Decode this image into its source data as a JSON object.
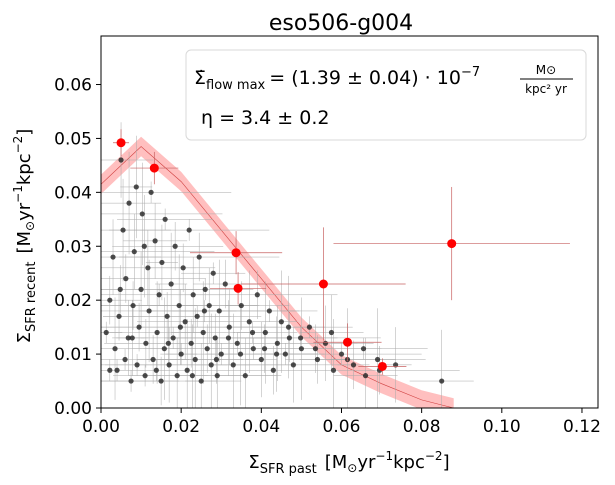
{
  "chart_data": {
    "type": "scatter",
    "title": "eso506-g004",
    "xlabel": {
      "main": "Σ",
      "sub": "SFR past",
      "units_pre": "[M",
      "units_sun": "⊙",
      "units_mid": "yr",
      "units_exp1": "−1",
      "units_mid2": "kpc",
      "units_exp2": "−2",
      "units_post": "]"
    },
    "ylabel": {
      "main": "Σ",
      "sub": "SFR recent",
      "units_pre": "[M",
      "units_sun": "⊙",
      "units_mid": "yr",
      "units_exp1": "−1",
      "units_mid2": "kpc",
      "units_exp2": "−2",
      "units_post": "]"
    },
    "xlim": [
      0,
      0.124
    ],
    "ylim": [
      0,
      0.069
    ],
    "x_ticks": [
      0.0,
      0.02,
      0.04,
      0.06,
      0.08,
      0.1,
      0.12
    ],
    "x_tick_labels": [
      "0.00",
      "0.02",
      "0.04",
      "0.06",
      "0.08",
      "0.10",
      "0.12"
    ],
    "y_ticks": [
      0.0,
      0.01,
      0.02,
      0.03,
      0.04,
      0.05,
      0.06
    ],
    "y_tick_labels": [
      "0.00",
      "0.01",
      "0.02",
      "0.03",
      "0.04",
      "0.05",
      "0.06"
    ],
    "grid": false,
    "annotation": {
      "line1_lhs": "Σ̇",
      "line1_sub": "flow max",
      "line1_rhs": "= (1.39 ± 0.04) · 10",
      "line1_exp": "−7",
      "line1_frac_num": "M⊙",
      "line1_frac_den": "kpc² yr",
      "line2": "η = 3.4 ± 0.2",
      "placement": "top-right"
    },
    "model_band": {
      "color": "#ff9c9c",
      "x": [
        0.0,
        0.01,
        0.02,
        0.03,
        0.04,
        0.05,
        0.06,
        0.07,
        0.08,
        0.088
      ],
      "center": [
        0.0415,
        0.0485,
        0.042,
        0.033,
        0.024,
        0.015,
        0.008,
        0.0045,
        0.0015,
        0.0
      ],
      "halfwidth": 0.0018
    },
    "series": [
      {
        "color": "#ff0000",
        "marker": "circle-large",
        "points": [
          {
            "x": 0.005,
            "y": 0.0492,
            "xerr": 0.002,
            "yerr": 0.0025
          },
          {
            "x": 0.0133,
            "y": 0.0445,
            "xerr": 0.006,
            "yerr": 0.003
          },
          {
            "x": 0.0337,
            "y": 0.0288,
            "xerr": 0.0115,
            "yerr": 0.004
          },
          {
            "x": 0.0342,
            "y": 0.0222,
            "xerr": 0.007,
            "yerr": 0.003
          },
          {
            "x": 0.0555,
            "y": 0.023,
            "xerr": 0.0205,
            "yerr": 0.0105
          },
          {
            "x": 0.0615,
            "y": 0.0122,
            "xerr": 0.0085,
            "yerr": 0.0035
          },
          {
            "x": 0.0702,
            "y": 0.0077,
            "xerr": 0.006,
            "yerr": 0.0015
          },
          {
            "x": 0.0875,
            "y": 0.0305,
            "xerr": 0.0295,
            "yerr": 0.0105
          }
        ]
      },
      {
        "color": "#222222",
        "marker": "circle-small",
        "points": [
          {
            "x": 0.0013,
            "y": 0.014
          },
          {
            "x": 0.0022,
            "y": 0.02
          },
          {
            "x": 0.003,
            "y": 0.028
          },
          {
            "x": 0.0035,
            "y": 0.011
          },
          {
            "x": 0.004,
            "y": 0.007
          },
          {
            "x": 0.0045,
            "y": 0.017
          },
          {
            "x": 0.005,
            "y": 0.046
          },
          {
            "x": 0.0055,
            "y": 0.033
          },
          {
            "x": 0.006,
            "y": 0.009
          },
          {
            "x": 0.0062,
            "y": 0.024
          },
          {
            "x": 0.0068,
            "y": 0.013
          },
          {
            "x": 0.007,
            "y": 0.038
          },
          {
            "x": 0.0075,
            "y": 0.005
          },
          {
            "x": 0.008,
            "y": 0.019
          },
          {
            "x": 0.0083,
            "y": 0.029
          },
          {
            "x": 0.0088,
            "y": 0.041
          },
          {
            "x": 0.009,
            "y": 0.008
          },
          {
            "x": 0.0095,
            "y": 0.015
          },
          {
            "x": 0.01,
            "y": 0.022
          },
          {
            "x": 0.0103,
            "y": 0.036
          },
          {
            "x": 0.011,
            "y": 0.006
          },
          {
            "x": 0.0112,
            "y": 0.012
          },
          {
            "x": 0.0117,
            "y": 0.026
          },
          {
            "x": 0.012,
            "y": 0.018
          },
          {
            "x": 0.0125,
            "y": 0.04
          },
          {
            "x": 0.013,
            "y": 0.009
          },
          {
            "x": 0.0135,
            "y": 0.031
          },
          {
            "x": 0.014,
            "y": 0.014
          },
          {
            "x": 0.0145,
            "y": 0.021
          },
          {
            "x": 0.015,
            "y": 0.005
          },
          {
            "x": 0.0152,
            "y": 0.027
          },
          {
            "x": 0.0158,
            "y": 0.011
          },
          {
            "x": 0.016,
            "y": 0.035
          },
          {
            "x": 0.0165,
            "y": 0.017
          },
          {
            "x": 0.017,
            "y": 0.008
          },
          {
            "x": 0.0175,
            "y": 0.023
          },
          {
            "x": 0.018,
            "y": 0.013
          },
          {
            "x": 0.0185,
            "y": 0.03
          },
          {
            "x": 0.019,
            "y": 0.006
          },
          {
            "x": 0.0195,
            "y": 0.019
          },
          {
            "x": 0.02,
            "y": 0.01
          },
          {
            "x": 0.0205,
            "y": 0.026
          },
          {
            "x": 0.021,
            "y": 0.016
          },
          {
            "x": 0.0215,
            "y": 0.007
          },
          {
            "x": 0.022,
            "y": 0.033
          },
          {
            "x": 0.0225,
            "y": 0.012
          },
          {
            "x": 0.023,
            "y": 0.021
          },
          {
            "x": 0.0235,
            "y": 0.009
          },
          {
            "x": 0.024,
            "y": 0.017
          },
          {
            "x": 0.0245,
            "y": 0.028
          },
          {
            "x": 0.025,
            "y": 0.005
          },
          {
            "x": 0.0255,
            "y": 0.014
          },
          {
            "x": 0.026,
            "y": 0.022
          },
          {
            "x": 0.0265,
            "y": 0.011
          },
          {
            "x": 0.027,
            "y": 0.019
          },
          {
            "x": 0.0275,
            "y": 0.008
          },
          {
            "x": 0.028,
            "y": 0.025
          },
          {
            "x": 0.0285,
            "y": 0.013
          },
          {
            "x": 0.029,
            "y": 0.006
          },
          {
            "x": 0.0295,
            "y": 0.018
          },
          {
            "x": 0.03,
            "y": 0.01
          },
          {
            "x": 0.031,
            "y": 0.023
          },
          {
            "x": 0.032,
            "y": 0.015
          },
          {
            "x": 0.033,
            "y": 0.008
          },
          {
            "x": 0.034,
            "y": 0.012
          },
          {
            "x": 0.035,
            "y": 0.019
          },
          {
            "x": 0.036,
            "y": 0.006
          },
          {
            "x": 0.037,
            "y": 0.016
          },
          {
            "x": 0.038,
            "y": 0.011
          },
          {
            "x": 0.039,
            "y": 0.021
          },
          {
            "x": 0.04,
            "y": 0.009
          },
          {
            "x": 0.041,
            "y": 0.014
          },
          {
            "x": 0.042,
            "y": 0.018
          },
          {
            "x": 0.043,
            "y": 0.007
          },
          {
            "x": 0.044,
            "y": 0.012
          },
          {
            "x": 0.045,
            "y": 0.016
          },
          {
            "x": 0.046,
            "y": 0.01
          },
          {
            "x": 0.047,
            "y": 0.013
          },
          {
            "x": 0.048,
            "y": 0.008
          },
          {
            "x": 0.05,
            "y": 0.011
          },
          {
            "x": 0.052,
            "y": 0.015
          },
          {
            "x": 0.054,
            "y": 0.009
          },
          {
            "x": 0.056,
            "y": 0.012
          },
          {
            "x": 0.058,
            "y": 0.007
          },
          {
            "x": 0.06,
            "y": 0.01
          },
          {
            "x": 0.063,
            "y": 0.008
          },
          {
            "x": 0.066,
            "y": 0.006
          },
          {
            "x": 0.069,
            "y": 0.009
          },
          {
            "x": 0.0022,
            "y": 0.007
          },
          {
            "x": 0.0048,
            "y": 0.022
          },
          {
            "x": 0.0078,
            "y": 0.013
          },
          {
            "x": 0.0108,
            "y": 0.03
          },
          {
            "x": 0.0138,
            "y": 0.007
          },
          {
            "x": 0.0168,
            "y": 0.012
          },
          {
            "x": 0.0198,
            "y": 0.015
          },
          {
            "x": 0.0228,
            "y": 0.006
          },
          {
            "x": 0.0258,
            "y": 0.018
          },
          {
            "x": 0.0288,
            "y": 0.009
          },
          {
            "x": 0.0318,
            "y": 0.013
          },
          {
            "x": 0.0348,
            "y": 0.01
          },
          {
            "x": 0.0378,
            "y": 0.014
          },
          {
            "x": 0.0408,
            "y": 0.011
          },
          {
            "x": 0.0438,
            "y": 0.01
          },
          {
            "x": 0.0468,
            "y": 0.015
          },
          {
            "x": 0.0498,
            "y": 0.013
          },
          {
            "x": 0.0535,
            "y": 0.011
          },
          {
            "x": 0.0575,
            "y": 0.014
          },
          {
            "x": 0.0615,
            "y": 0.009
          },
          {
            "x": 0.0655,
            "y": 0.011
          },
          {
            "x": 0.0695,
            "y": 0.007
          },
          {
            "x": 0.0735,
            "y": 0.008
          },
          {
            "x": 0.085,
            "y": 0.005
          }
        ]
      }
    ]
  }
}
